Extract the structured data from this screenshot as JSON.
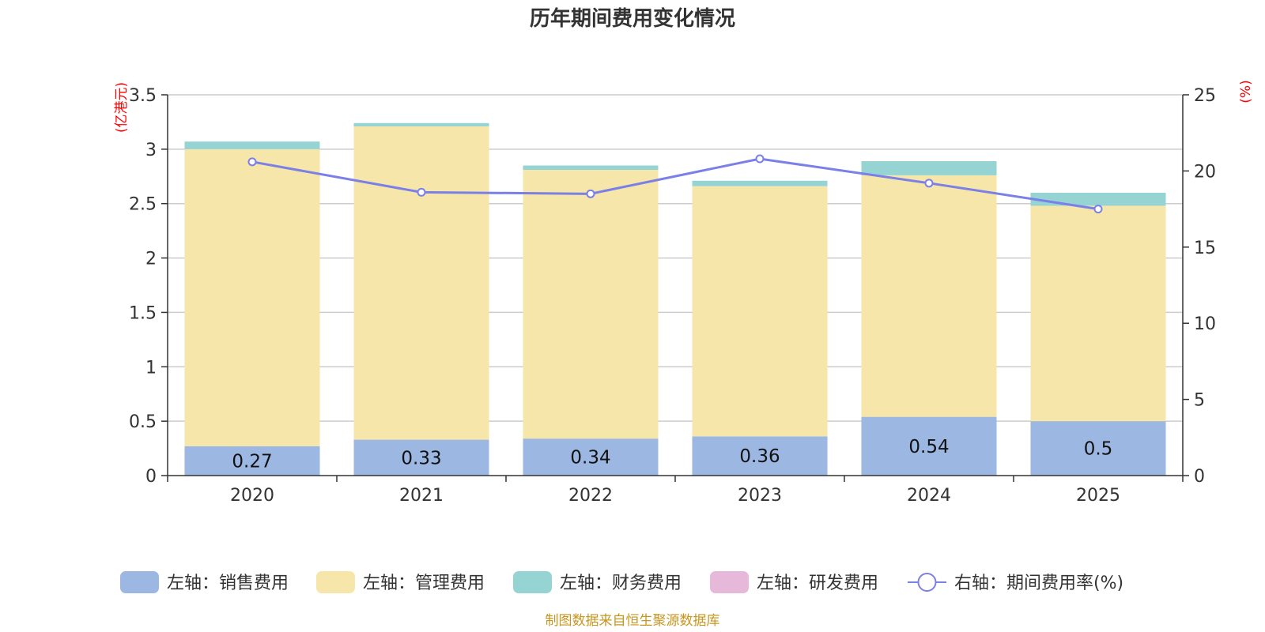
{
  "chart_data": {
    "type": "bar",
    "title": "历年期间费用变化情况",
    "categories": [
      "2020",
      "2021",
      "2022",
      "2023",
      "2024",
      "2025"
    ],
    "left_axis": {
      "unit": "(亿港元)",
      "ylim": [
        0,
        3.5
      ],
      "ticks": [
        "0",
        "0.5",
        "1",
        "1.5",
        "2",
        "2.5",
        "3",
        "3.5"
      ]
    },
    "right_axis": {
      "unit": "(%)",
      "ylim": [
        0,
        25
      ],
      "ticks": [
        "0",
        "5",
        "10",
        "15",
        "20",
        "25"
      ]
    },
    "series": [
      {
        "name": "左轴：销售费用",
        "type": "bar",
        "axis": "left",
        "color": "#9bb7e2",
        "values": [
          0.27,
          0.33,
          0.34,
          0.36,
          0.54,
          0.5
        ],
        "labels": [
          "0.27",
          "0.33",
          "0.34",
          "0.36",
          "0.54",
          "0.5"
        ]
      },
      {
        "name": "左轴：管理费用",
        "type": "bar",
        "axis": "left",
        "color": "#f7e6a9",
        "values": [
          2.73,
          2.88,
          2.47,
          2.3,
          2.22,
          1.98
        ]
      },
      {
        "name": "左轴：财务费用",
        "type": "bar",
        "axis": "left",
        "color": "#96d4d4",
        "values": [
          0.07,
          0.03,
          0.04,
          0.05,
          0.13,
          0.12
        ]
      },
      {
        "name": "左轴：研发费用",
        "type": "bar",
        "axis": "left",
        "color": "#e6b9db",
        "values": [
          0,
          0,
          0,
          0,
          0,
          0
        ]
      },
      {
        "name": "右轴：期间费用率(%)",
        "type": "line",
        "axis": "right",
        "color": "#7b7fe8",
        "values": [
          20.6,
          18.6,
          18.5,
          20.8,
          19.2,
          17.5
        ]
      }
    ],
    "grid": true,
    "legend": "bottom"
  },
  "source_note": "制图数据来自恒生聚源数据库"
}
